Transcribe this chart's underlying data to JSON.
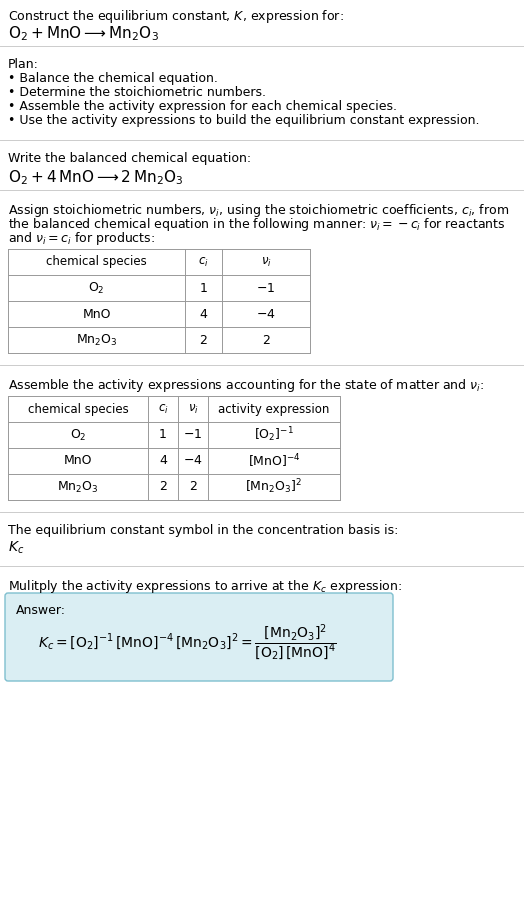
{
  "title_line1": "Construct the equilibrium constant, $K$, expression for:",
  "title_line2": "$\\mathrm{O_2 + MnO \\longrightarrow Mn_2O_3}$",
  "plan_header": "Plan:",
  "plan_bullets": [
    "• Balance the chemical equation.",
    "• Determine the stoichiometric numbers.",
    "• Assemble the activity expression for each chemical species.",
    "• Use the activity expressions to build the equilibrium constant expression."
  ],
  "balanced_header": "Write the balanced chemical equation:",
  "balanced_eq": "$\\mathrm{O_2 + 4\\,MnO \\longrightarrow 2\\,Mn_2O_3}$",
  "stoich_header_parts": [
    "Assign stoichiometric numbers, $\\nu_i$, using the stoichiometric coefficients, $c_i$, from",
    "the balanced chemical equation in the following manner: $\\nu_i = -c_i$ for reactants",
    "and $\\nu_i = c_i$ for products:"
  ],
  "table1_headers": [
    "chemical species",
    "$c_i$",
    "$\\nu_i$"
  ],
  "table1_rows": [
    [
      "$\\mathrm{O_2}$",
      "1",
      "$-1$"
    ],
    [
      "MnO",
      "4",
      "$-4$"
    ],
    [
      "$\\mathrm{Mn_2O_3}$",
      "2",
      "2"
    ]
  ],
  "activity_header": "Assemble the activity expressions accounting for the state of matter and $\\nu_i$:",
  "table2_headers": [
    "chemical species",
    "$c_i$",
    "$\\nu_i$",
    "activity expression"
  ],
  "table2_rows": [
    [
      "$\\mathrm{O_2}$",
      "1",
      "$-1$",
      "$[\\mathrm{O_2}]^{-1}$"
    ],
    [
      "MnO",
      "4",
      "$-4$",
      "$[\\mathrm{MnO}]^{-4}$"
    ],
    [
      "$\\mathrm{Mn_2O_3}$",
      "2",
      "2",
      "$[\\mathrm{Mn_2O_3}]^{2}$"
    ]
  ],
  "kc_header": "The equilibrium constant symbol in the concentration basis is:",
  "kc_symbol": "$K_c$",
  "multiply_header": "Mulitply the activity expressions to arrive at the $K_c$ expression:",
  "answer_label": "Answer:",
  "answer_eq": "$K_c = [\\mathrm{O_2}]^{-1}\\,[\\mathrm{MnO}]^{-4}\\,[\\mathrm{Mn_2O_3}]^{2} = \\dfrac{[\\mathrm{Mn_2O_3}]^{2}}{[\\mathrm{O_2}]\\,[\\mathrm{MnO}]^{4}}$",
  "bg_color": "#ffffff",
  "table_border_color": "#999999",
  "answer_box_facecolor": "#daeef3",
  "answer_box_edgecolor": "#7fbfcf",
  "text_color": "#000000",
  "font_size": 9.0,
  "fig_width": 5.24,
  "fig_height": 9.01,
  "dpi": 100
}
